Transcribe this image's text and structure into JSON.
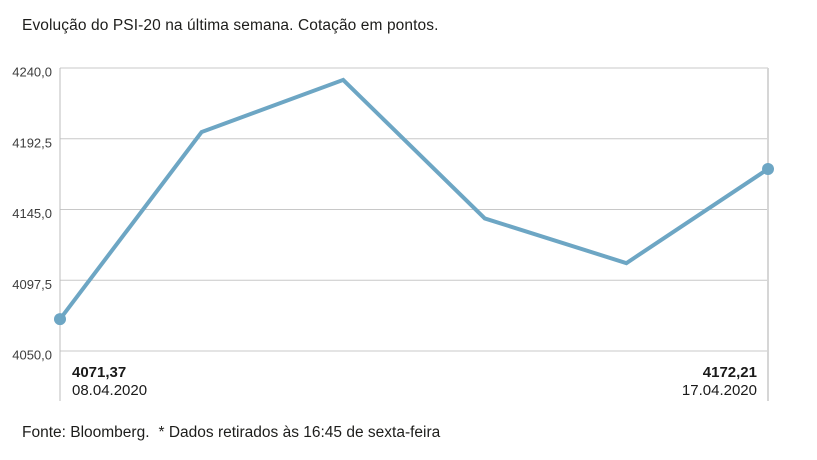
{
  "title": "Evolução do PSI-20 na última semana. Cotação em pontos.",
  "footer": {
    "source": "Fonte: Bloomberg.",
    "note": "* Dados retirados às 16:45 de sexta-feira"
  },
  "colors": {
    "line": "#6da6c4",
    "grid": "#c8c8c8",
    "axis_left": "#bdbdbd",
    "axis_right": "#d6d6d6"
  },
  "chart_data": {
    "type": "line",
    "title": "Evolução do PSI-20 na última semana. Cotação em pontos.",
    "xlabel": "",
    "ylabel": "",
    "ylim": [
      4050,
      4240
    ],
    "grid": true,
    "legend_position": "none",
    "yticks": [
      {
        "value": 4240.0,
        "label": "4240,0"
      },
      {
        "value": 4192.5,
        "label": "4192,5"
      },
      {
        "value": 4145.0,
        "label": "4145,0"
      },
      {
        "value": 4097.5,
        "label": "4097,5"
      },
      {
        "value": 4050.0,
        "label": "4050,0"
      }
    ],
    "series": [
      {
        "name": "PSI-20",
        "values": [
          4071.37,
          4197,
          4232,
          4139,
          4109,
          4172.21
        ]
      }
    ],
    "markers": "endpoints-only",
    "point_labels": {
      "start": {
        "value": "4071,37",
        "date": "08.04.2020"
      },
      "end": {
        "value": "4172,21",
        "date": "17.04.2020"
      }
    }
  }
}
